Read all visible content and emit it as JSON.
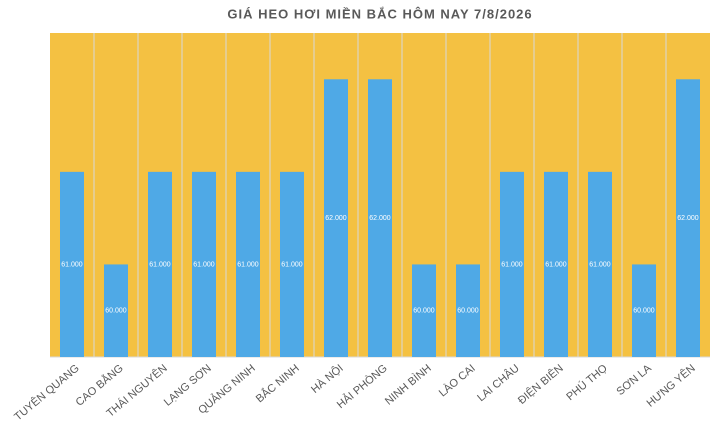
{
  "chart_data": {
    "type": "bar",
    "title": "GIÁ HEO HƠI MIỀN BẮC HÔM NAY 7/8/2026",
    "categories": [
      "TUYÊN QUANG",
      "CAO BẰNG",
      "THÁI NGUYÊN",
      "LẠNG SƠN",
      "QUẢNG NINH",
      "BẮC NINH",
      "HÀ NỘI",
      "HẢI PHÒNG",
      "NINH BÌNH",
      "LÀO CAI",
      "LAI CHÂU",
      "ĐIỆN BIÊN",
      "PHÚ THỌ",
      "SƠN LA",
      "HƯNG YÊN"
    ],
    "values": [
      61000,
      60000,
      61000,
      61000,
      61000,
      61000,
      62000,
      62000,
      60000,
      60000,
      61000,
      61000,
      61000,
      60000,
      62000
    ],
    "value_labels": [
      "61.000",
      "60.000",
      "61.000",
      "61.000",
      "61.000",
      "61.000",
      "62.000",
      "62.000",
      "60.000",
      "60.000",
      "61.000",
      "61.000",
      "61.000",
      "60.000",
      "62.000"
    ],
    "color": "#4fa9e6",
    "background": "#f4c142",
    "ylim": [
      59000,
      62500
    ]
  }
}
